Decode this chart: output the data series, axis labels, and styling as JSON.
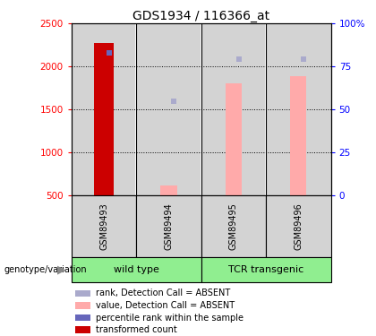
{
  "title": "GDS1934 / 116366_at",
  "samples": [
    "GSM89493",
    "GSM89494",
    "GSM89495",
    "GSM89496"
  ],
  "ylim_left": [
    500,
    2500
  ],
  "ylim_right": [
    0,
    100
  ],
  "yticks_left": [
    500,
    1000,
    1500,
    2000,
    2500
  ],
  "yticks_right": [
    0,
    25,
    50,
    75,
    100
  ],
  "ytick_right_labels": [
    "0",
    "25",
    "50",
    "75",
    "100%"
  ],
  "red_bars": [
    2270,
    null,
    null,
    null
  ],
  "blue_squares_val": [
    2160,
    null,
    null,
    null
  ],
  "pink_bars": [
    null,
    610,
    1800,
    1890
  ],
  "lavender_squares_val": [
    null,
    1595,
    2080,
    2085
  ],
  "red_bar_color": "#cc0000",
  "blue_square_color": "#6666bb",
  "pink_bar_color": "#ffaaaa",
  "lavender_square_color": "#aaaacc",
  "bg_sample_color": "#d3d3d3",
  "group_color": "#90ee90",
  "title_fontsize": 10,
  "groups": [
    {
      "label": "wild type",
      "start": 0,
      "end": 2
    },
    {
      "label": "TCR transgenic",
      "start": 2,
      "end": 4
    }
  ],
  "legend_items": [
    {
      "label": "transformed count",
      "color": "#cc0000"
    },
    {
      "label": "percentile rank within the sample",
      "color": "#6666bb"
    },
    {
      "label": "value, Detection Call = ABSENT",
      "color": "#ffaaaa"
    },
    {
      "label": "rank, Detection Call = ABSENT",
      "color": "#aaaacc"
    }
  ],
  "genotype_label": "genotype/variation"
}
